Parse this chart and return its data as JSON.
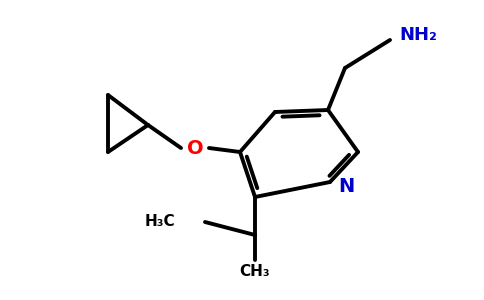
{
  "background_color": "#ffffff",
  "bond_color": "#000000",
  "N_color": "#0000cd",
  "O_color": "#ff0000",
  "bond_width": 2.8,
  "figsize": [
    4.84,
    3.0
  ],
  "dpi": 100,
  "xlim": [
    0,
    484
  ],
  "ylim": [
    0,
    300
  ]
}
